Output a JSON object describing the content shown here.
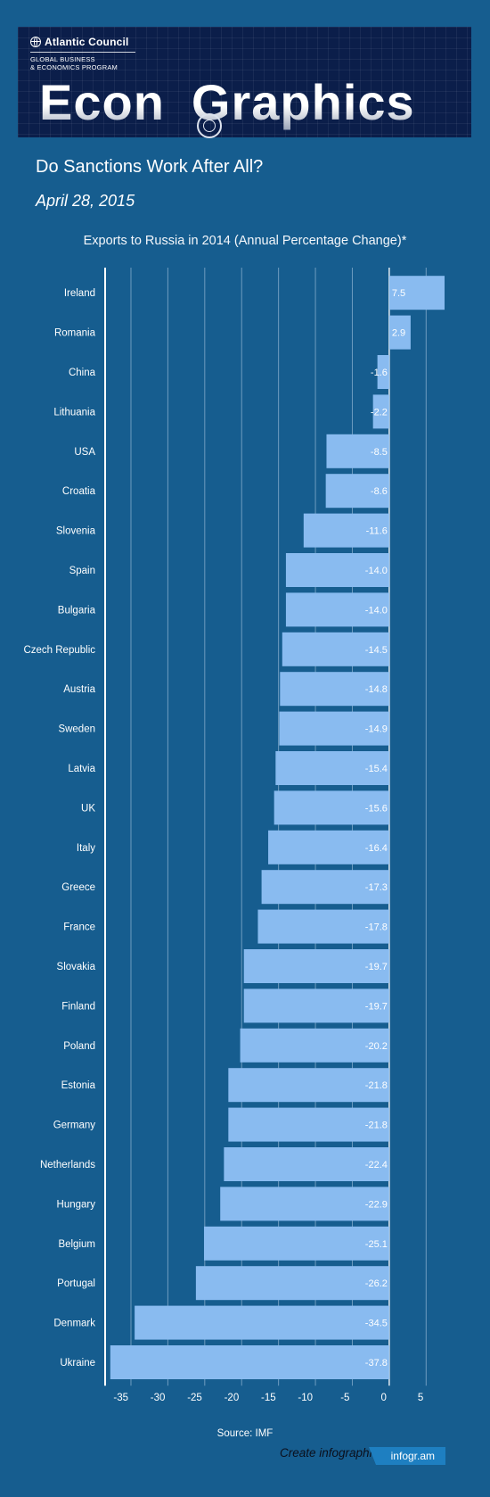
{
  "header": {
    "org_name": "Atlantic Council",
    "program_line1": "GLOBAL BUSINESS",
    "program_line2": "& ECONOMICS PROGRAM",
    "brand_left": "Econ",
    "brand_right": "Graphics"
  },
  "page": {
    "title": "Do Sanctions Work After All?",
    "date": "April 28, 2015"
  },
  "chart_data": {
    "type": "bar",
    "orientation": "horizontal",
    "title": "Exports to Russia in 2014 (Annual Percentage Change)*",
    "categories": [
      "Ireland",
      "Romania",
      "China",
      "Lithuania",
      "USA",
      "Croatia",
      "Slovenia",
      "Spain",
      "Bulgaria",
      "Czech Republic",
      "Austria",
      "Sweden",
      "Latvia",
      "UK",
      "Italy",
      "Greece",
      "France",
      "Slovakia",
      "Finland",
      "Poland",
      "Estonia",
      "Germany",
      "Netherlands",
      "Hungary",
      "Belgium",
      "Portugal",
      "Denmark",
      "Ukraine"
    ],
    "values": [
      7.5,
      2.9,
      -1.6,
      -2.2,
      -8.5,
      -8.6,
      -11.6,
      -14.0,
      -14.0,
      -14.5,
      -14.8,
      -14.9,
      -15.4,
      -15.6,
      -16.4,
      -17.3,
      -17.8,
      -19.7,
      -19.7,
      -20.2,
      -21.8,
      -21.8,
      -22.4,
      -22.9,
      -25.1,
      -26.2,
      -34.5,
      -37.8
    ],
    "value_labels": [
      "7.5",
      "2.9",
      "-1.6",
      "-2.2",
      "-8.5",
      "-8.6",
      "-11.6",
      "-14.0",
      "-14.0",
      "-14.5",
      "-14.8",
      "-14.9",
      "-15.4",
      "-15.6",
      "-16.4",
      "-17.3",
      "-17.8",
      "-19.7",
      "-19.7",
      "-20.2",
      "-21.8",
      "-21.8",
      "-22.4",
      "-22.9",
      "-25.1",
      "-26.2",
      "-34.5",
      "-37.8"
    ],
    "xlim": [
      -38.5,
      7.5
    ],
    "ticks": [
      -35,
      -30,
      -25,
      -20,
      -15,
      -10,
      -5,
      0,
      5
    ],
    "tick_labels": [
      "-35",
      "-30",
      "-25",
      "-20",
      "-15",
      "-10",
      "-5",
      "0",
      "5"
    ],
    "grid": true,
    "colors": {
      "bar": "#89bbf0",
      "background": "#165d8f",
      "grid": "#6e9cc0"
    }
  },
  "footer": {
    "source": "Source: IMF",
    "create_text": "Create infographics",
    "infogram_label": "infogr.am"
  }
}
